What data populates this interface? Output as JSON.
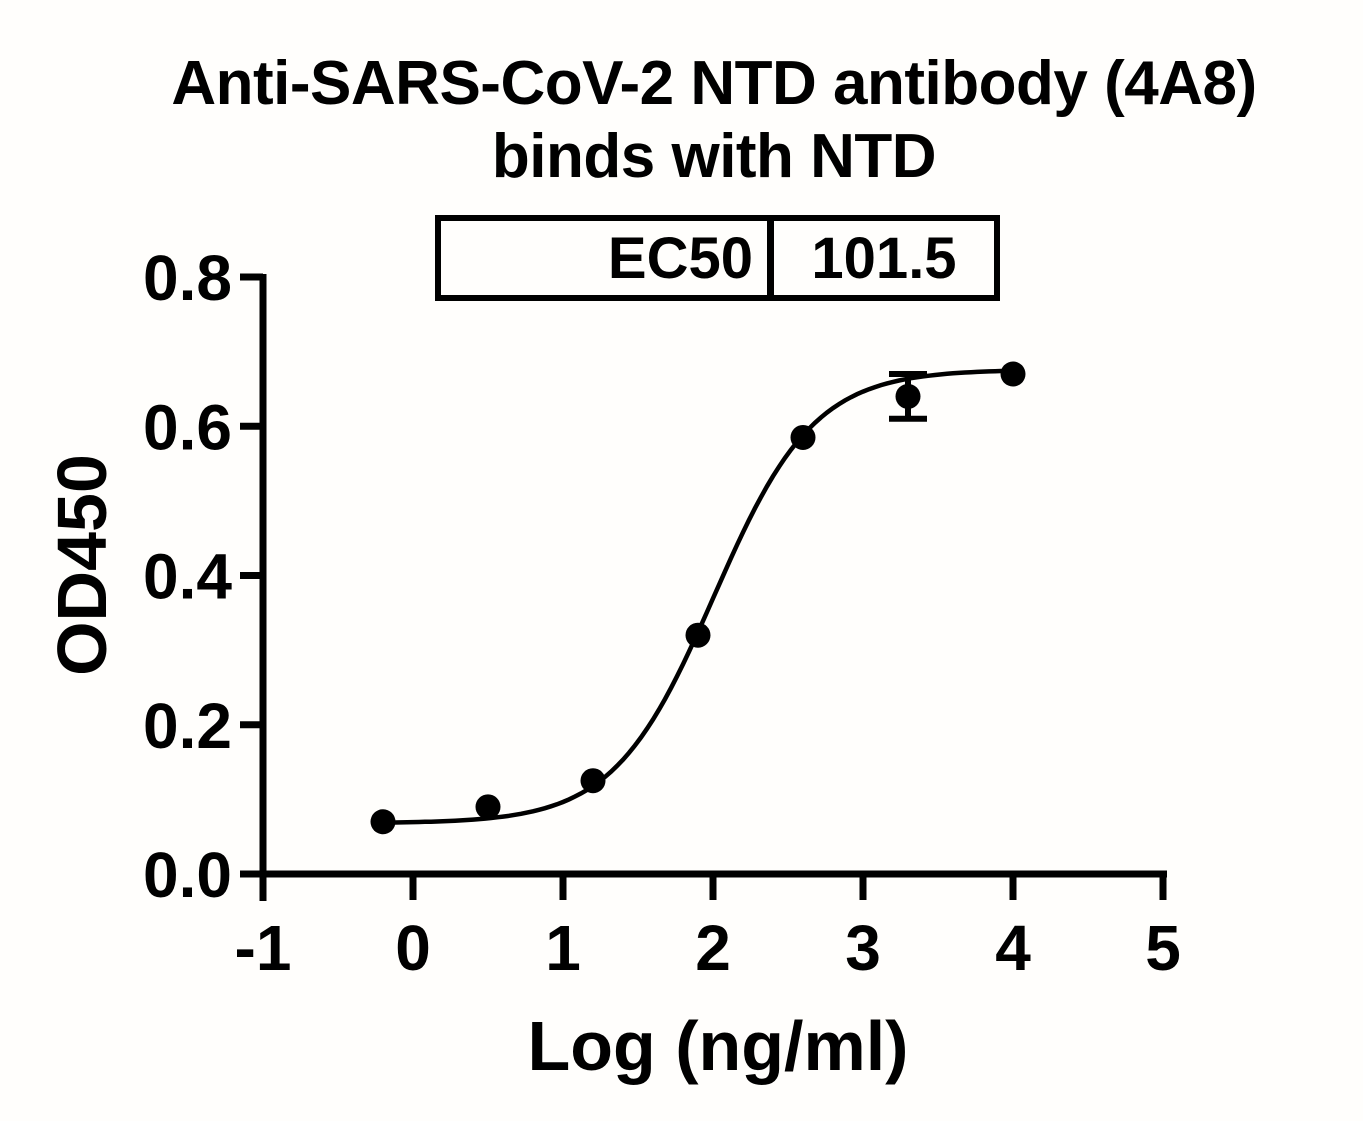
{
  "title": {
    "line1": "Anti-SARS-CoV-2 NTD antibody (4A8)",
    "line2": "binds with NTD"
  },
  "ec50_table": {
    "label": "EC50",
    "value": "101.5"
  },
  "chart_data": {
    "type": "scatter",
    "x": [
      -0.2,
      0.5,
      1.2,
      1.9,
      2.6,
      3.3,
      4.0
    ],
    "y": [
      0.07,
      0.09,
      0.125,
      0.32,
      0.585,
      0.64,
      0.67
    ],
    "error_bars": [
      {
        "x": 3.3,
        "y": 0.64,
        "plus": 0.03,
        "minus": 0.03
      }
    ],
    "curve_fit": {
      "model": "4PL-sigmoid",
      "bottom": 0.068,
      "top": 0.676,
      "logEC50": 2.006,
      "hill": 1.3,
      "x_start": -0.2,
      "x_end": 4.0
    },
    "title": "Anti-SARS-CoV-2 NTD antibody (4A8) binds with NTD",
    "xlabel": "Log (ng/ml)",
    "ylabel": "OD450",
    "xlim": [
      -1,
      5
    ],
    "ylim": [
      0.0,
      0.8
    ],
    "xticks": [
      -1,
      0,
      1,
      2,
      3,
      4,
      5
    ],
    "yticks": [
      0.0,
      0.2,
      0.4,
      0.6,
      0.8
    ],
    "grid": false,
    "legend": "none",
    "marker_color": "#000000",
    "line_color": "#000000",
    "axis_color": "#000000",
    "background_color": "#fffefc"
  }
}
